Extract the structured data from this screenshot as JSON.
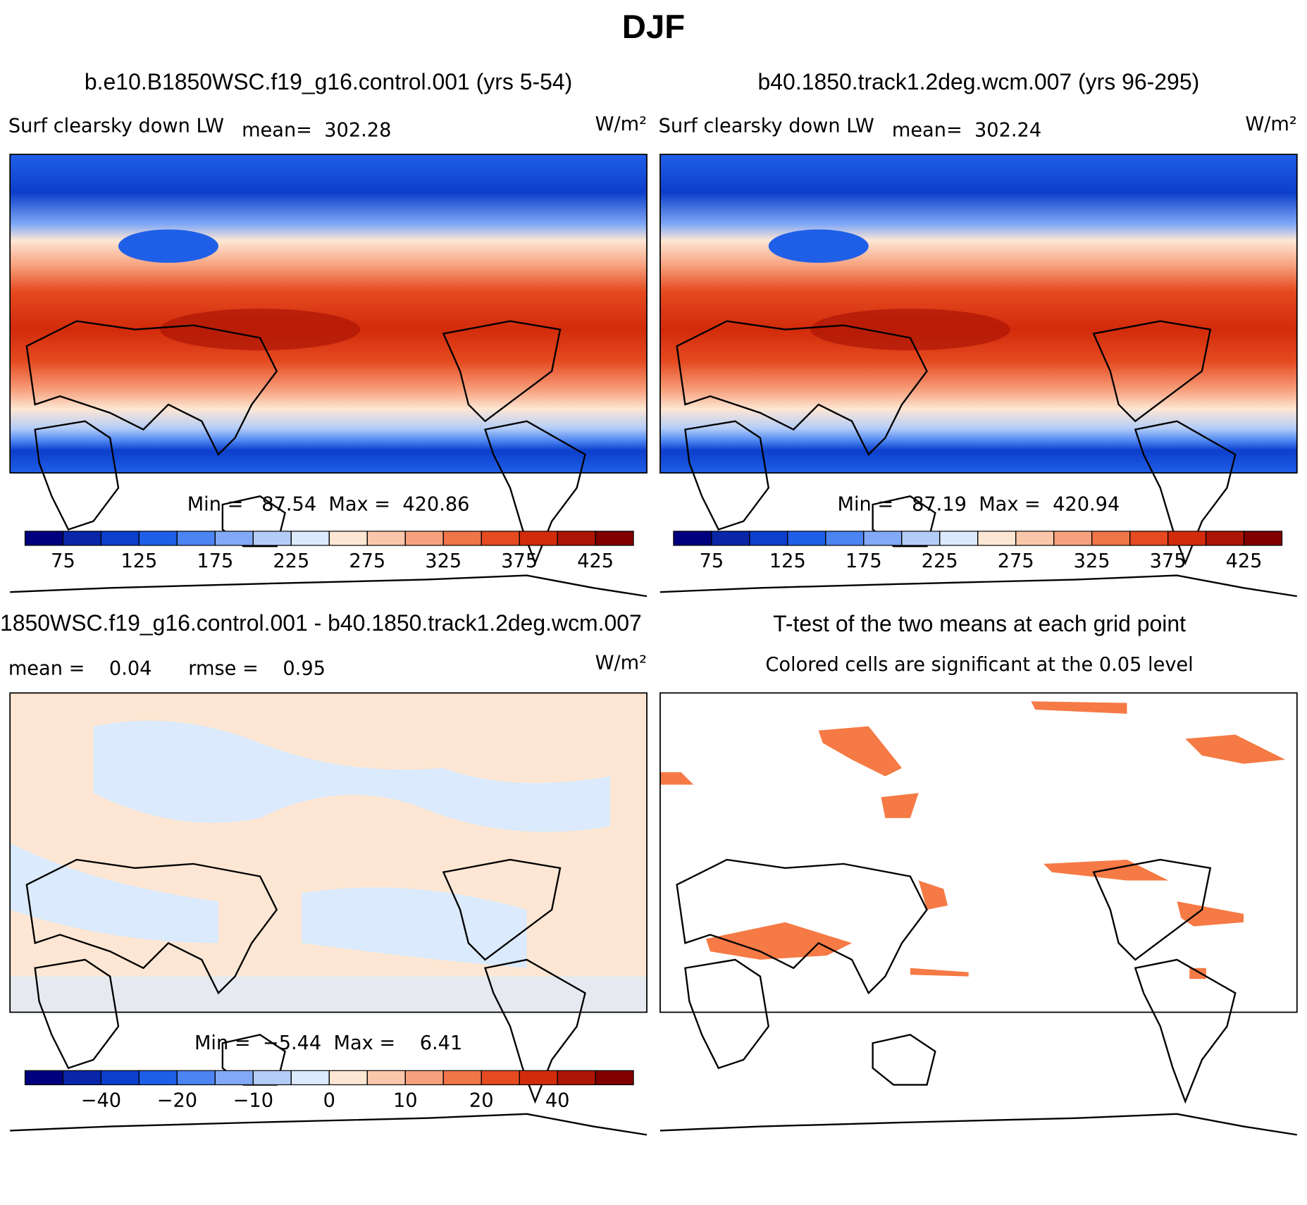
{
  "title": "DJF",
  "panels": [
    {
      "title": "b.e10.B1850WSC.f19_g16.control.001 (yrs 5-54)",
      "variable": "Surf clearsky down LW",
      "stat": "mean=  302.28",
      "units": "W/m²",
      "range": "Min =   87.54  Max =  420.86",
      "colorbar": {
        "colors": [
          "#00007f",
          "#0a26a8",
          "#0c3fcb",
          "#1f5fe8",
          "#4c84f2",
          "#82a9f6",
          "#b3cdf8",
          "#dbeafc",
          "#fde7d4",
          "#fbc7aa",
          "#f7a07d",
          "#f07548",
          "#e54a20",
          "#d22b0b",
          "#ad1505",
          "#800000"
        ],
        "levels": [
          75,
          100,
          125,
          150,
          175,
          200,
          225,
          250,
          275,
          300,
          325,
          350,
          375,
          400,
          425
        ],
        "ticks": [
          75,
          125,
          175,
          225,
          275,
          325,
          375,
          425
        ]
      }
    },
    {
      "title": "b40.1850.track1.2deg.wcm.007 (yrs 96-295)",
      "variable": "Surf clearsky down LW",
      "stat": "mean=  302.24",
      "units": "W/m²",
      "range": "Min =   87.19  Max =  420.94",
      "colorbar": {
        "colors": [
          "#00007f",
          "#0a26a8",
          "#0c3fcb",
          "#1f5fe8",
          "#4c84f2",
          "#82a9f6",
          "#b3cdf8",
          "#dbeafc",
          "#fde7d4",
          "#fbc7aa",
          "#f7a07d",
          "#f07548",
          "#e54a20",
          "#d22b0b",
          "#ad1505",
          "#800000"
        ],
        "levels": [
          75,
          100,
          125,
          150,
          175,
          200,
          225,
          250,
          275,
          300,
          325,
          350,
          375,
          400,
          425
        ],
        "ticks": [
          75,
          125,
          175,
          225,
          275,
          325,
          375,
          425
        ]
      }
    },
    {
      "title": "1850WSC.f19_g16.control.001 - b40.1850.track1.2deg.wcm.007",
      "variable": "mean =    0.04      rmse =    0.95",
      "units": "W/m²",
      "range": "Min =  −5.44  Max =    6.41",
      "colorbar": {
        "colors": [
          "#00007f",
          "#0a26a8",
          "#0c3fcb",
          "#1f5fe8",
          "#4c84f2",
          "#82a9f6",
          "#b3cdf8",
          "#dbeafc",
          "#fde7d4",
          "#fbc7aa",
          "#f7a07d",
          "#f07548",
          "#e54a20",
          "#d22b0b",
          "#ad1505",
          "#800000"
        ],
        "levels": [
          -50,
          -40,
          -30,
          -20,
          -15,
          -10,
          -5,
          0,
          5,
          10,
          15,
          20,
          30,
          40,
          50
        ],
        "ticks": [
          {
            "value": -40,
            "label": "−40"
          },
          {
            "value": -20,
            "label": "−20"
          },
          {
            "value": -10,
            "label": "−10"
          },
          0,
          10,
          20,
          40
        ]
      }
    },
    {
      "title": "T-test of the two means at each grid point",
      "variable": "Colored cells are significant at the 0.05 level"
    }
  ]
}
